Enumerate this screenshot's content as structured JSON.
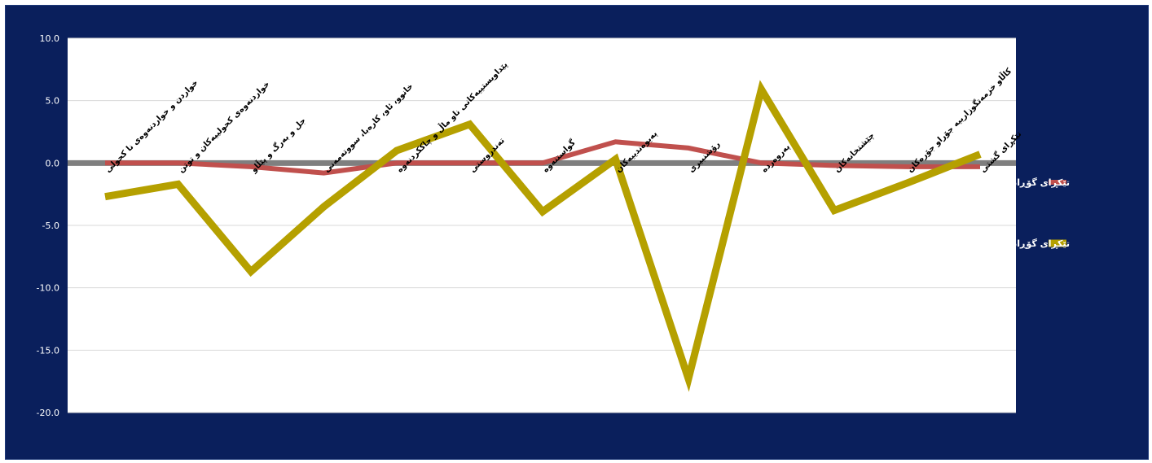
{
  "chart_data": {
    "type": "line",
    "title": "",
    "xlabel": "",
    "ylabel": "",
    "ylim": [
      -20,
      10
    ],
    "yticks": [
      "10.0",
      "5.0",
      "0.0",
      "-5.0",
      "-10.0",
      "-15.0",
      "-20.0"
    ],
    "grid": true,
    "legend_position": "right",
    "categories": [
      "خواردن و خواردنەوەی نا کحولی",
      "خواردنەوەی کحولییەکان و توتن",
      "جل و بەرگ و پێڵاو",
      "خانوو، ئاو، کارەبا، سووتەمەنی",
      "پێداویستییەکانی ناو ماڵ و چاککردنەوە",
      "تەندروستی",
      "گواستنەوە",
      "پەیوەندییەکان",
      "رۆشنبیری",
      "پەروەردە",
      "چێشتخانەکان",
      "کاڵاو خزمەتگوزارییە جۆراو جۆرەکان",
      "تێکڕای گشتی"
    ],
    "series": [
      {
        "name": "تێکڕای گۆڕانی مانگانە",
        "color": "#c0504d",
        "values": [
          0.0,
          0.0,
          -0.3,
          -0.8,
          0.0,
          0.0,
          0.0,
          1.7,
          1.2,
          0.0,
          -0.2,
          -0.3,
          -0.3
        ]
      },
      {
        "name": "تێکڕای گۆڕانی ساڵانە",
        "color": "#b5a000",
        "values": [
          -2.7,
          -1.7,
          -8.7,
          -3.5,
          1.0,
          3.1,
          -3.9,
          0.3,
          -17.3,
          5.9,
          -3.8,
          -1.6,
          0.7
        ]
      }
    ]
  }
}
